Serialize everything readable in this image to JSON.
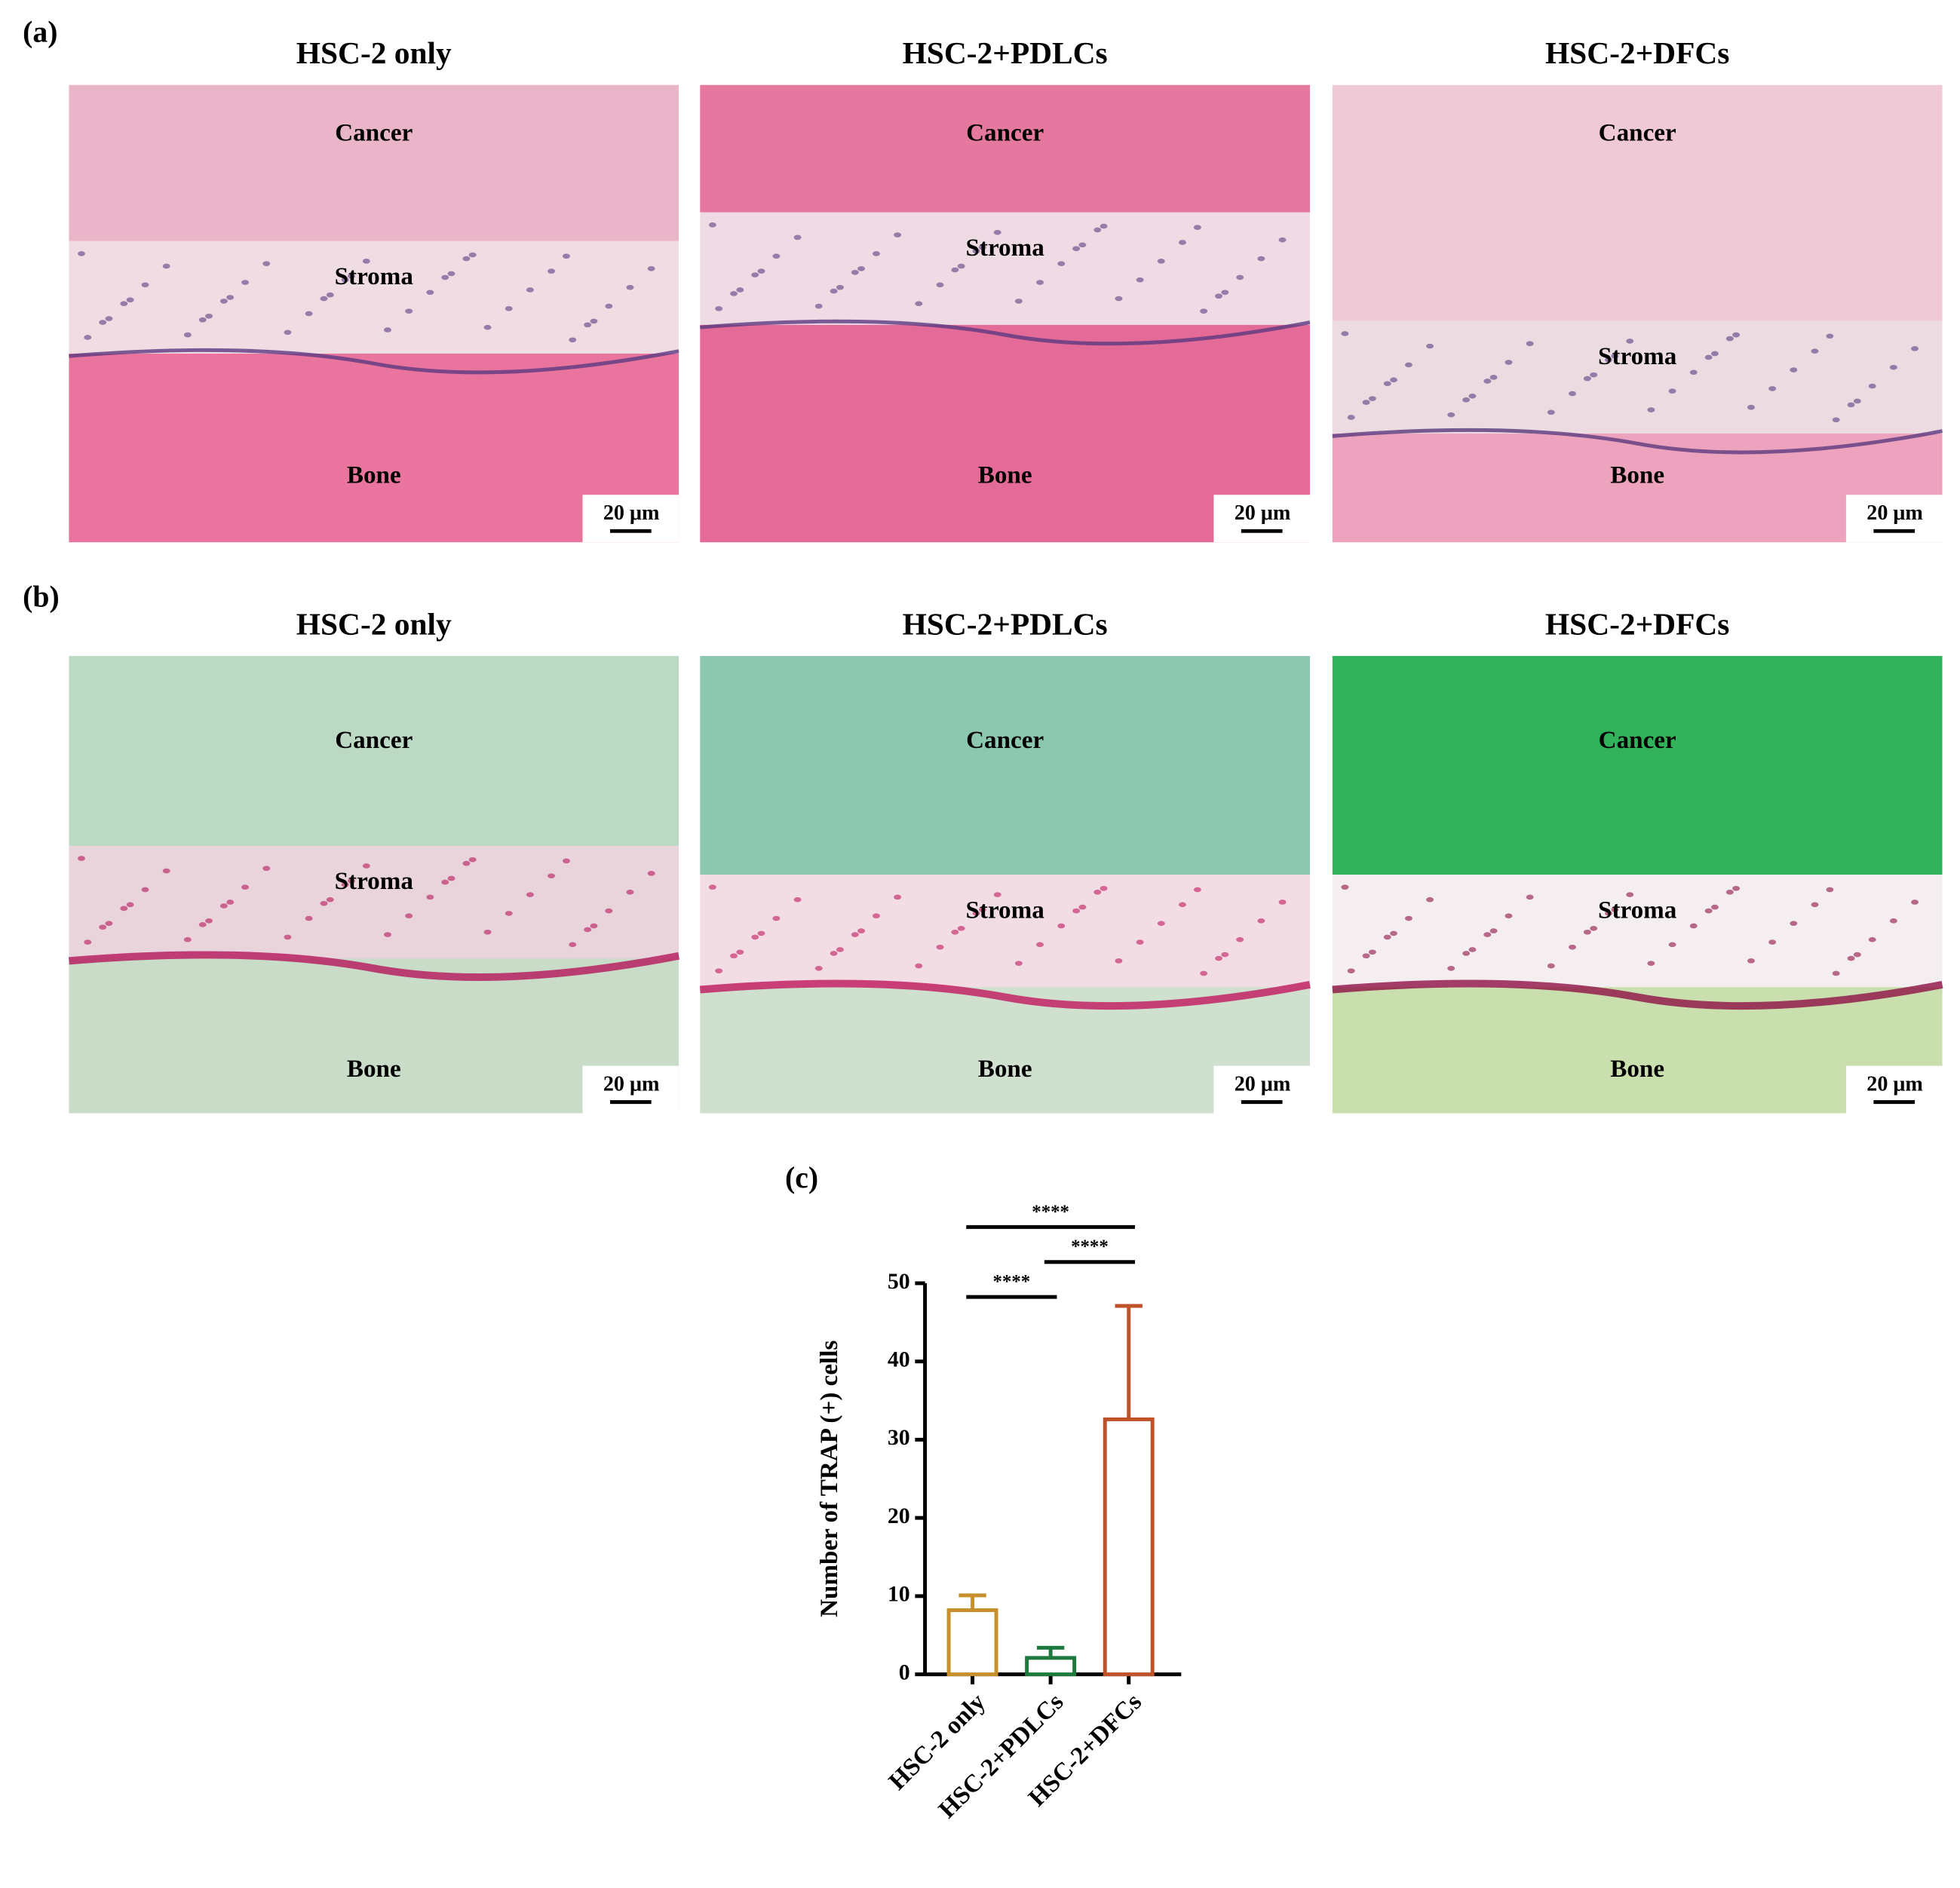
{
  "panel_a": {
    "label": "(a)",
    "images": [
      {
        "title": "HSC-2 only",
        "regions": [
          "Cancer",
          "Stroma",
          "Bone"
        ],
        "scale_bar": "20 μm"
      },
      {
        "title": "HSC-2+PDLCs",
        "regions": [
          "Cancer",
          "Stroma",
          "Bone"
        ],
        "scale_bar": "20 μm"
      },
      {
        "title": "HSC-2+DFCs",
        "regions": [
          "Cancer",
          "Stroma",
          "Bone"
        ],
        "scale_bar": "20 μm"
      }
    ]
  },
  "panel_b": {
    "label": "(b)",
    "images": [
      {
        "title": "HSC-2 only",
        "regions": [
          "Cancer",
          "Stroma",
          "Bone"
        ],
        "scale_bar": "20 μm"
      },
      {
        "title": "HSC-2+PDLCs",
        "regions": [
          "Cancer",
          "Stroma",
          "Bone"
        ],
        "scale_bar": "20 μm"
      },
      {
        "title": "HSC-2+DFCs",
        "regions": [
          "Cancer",
          "Stroma",
          "Bone"
        ],
        "scale_bar": "20 μm"
      }
    ]
  },
  "chart_data": {
    "type": "bar",
    "panel_label": "(c)",
    "ylabel": "Number of TRAP (+) cells",
    "categories": [
      "HSC-2 only",
      "HSC-2+PDLCs",
      "HSC-2+DFCs"
    ],
    "values": [
      8.2,
      2.1,
      32.6
    ],
    "errors": [
      1.9,
      1.3,
      14.5
    ],
    "colors": [
      "#c8902c",
      "#1e7a3c",
      "#c0522a"
    ],
    "ylim": [
      0,
      50
    ],
    "yticks": [
      0,
      10,
      20,
      30,
      40,
      50
    ],
    "significance": [
      {
        "pair": [
          0,
          1
        ],
        "label": "****"
      },
      {
        "pair": [
          1,
          2
        ],
        "label": "****"
      },
      {
        "pair": [
          0,
          2
        ],
        "label": "****"
      }
    ]
  }
}
